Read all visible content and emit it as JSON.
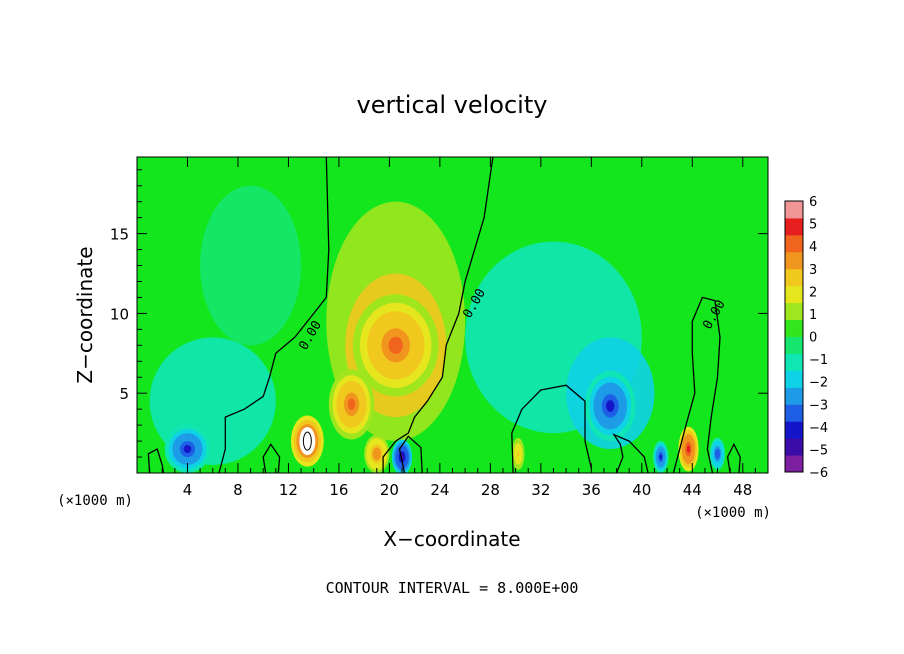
{
  "chart_data": {
    "type": "heatmap",
    "title": "vertical velocity",
    "xlabel": "X−coordinate",
    "ylabel": "Z−coordinate",
    "x_unit_left": "(×1000 m)",
    "x_unit_right": "(×1000 m)",
    "footer": "CONTOUR INTERVAL = 8.000E+00",
    "xlim": [
      0,
      50
    ],
    "ylim": [
      0,
      19.8
    ],
    "x_ticks": [
      4,
      8,
      12,
      16,
      20,
      24,
      28,
      32,
      36,
      40,
      44,
      48
    ],
    "y_ticks": [
      5,
      10,
      15
    ],
    "colorbar": {
      "min": -6,
      "max": 6,
      "tick_values": [
        6,
        5,
        4,
        3,
        2,
        1,
        0,
        -1,
        -2,
        -3,
        -4,
        -5,
        -6
      ],
      "tick_labels": [
        "6",
        "5",
        "4",
        "3",
        "2",
        "1",
        "0",
        "−1",
        "−2",
        "−3",
        "−4",
        "−5",
        "−6"
      ]
    },
    "contour_labels": [
      {
        "text": "0.00",
        "x": 14.0,
        "z": 8.5
      },
      {
        "text": "0.00",
        "x": 27.0,
        "z": 10.5
      },
      {
        "text": "0.00",
        "x": 46.0,
        "z": 9.8
      }
    ],
    "features": [
      {
        "kind": "updraft",
        "x": 13.5,
        "z": 2.0,
        "value": 6.0
      },
      {
        "kind": "updraft",
        "x": 17.0,
        "z": 4.3,
        "value": 4.0
      },
      {
        "kind": "updraft",
        "x": 20.5,
        "z": 8.0,
        "value": 3.8
      },
      {
        "kind": "updraft",
        "x": 19.0,
        "z": 1.2,
        "value": 3.5
      },
      {
        "kind": "updraft",
        "x": 43.7,
        "z": 1.5,
        "value": 5.0
      },
      {
        "kind": "updraft",
        "x": 30.2,
        "z": 1.2,
        "value": 2.5
      },
      {
        "kind": "downdraft",
        "x": 37.5,
        "z": 4.2,
        "value": -3.8
      },
      {
        "kind": "downdraft",
        "x": 4.0,
        "z": 1.5,
        "value": -4.0
      },
      {
        "kind": "downdraft",
        "x": 21.0,
        "z": 1.0,
        "value": -5.0
      },
      {
        "kind": "downdraft",
        "x": 41.5,
        "z": 1.0,
        "value": -4.0
      },
      {
        "kind": "downdraft",
        "x": 46.0,
        "z": 1.2,
        "value": -3.5
      }
    ]
  },
  "colors": {
    "scale": [
      "#7c1fa0",
      "#3c0ca8",
      "#1414c8",
      "#1e5fe6",
      "#1e9be6",
      "#10d2e6",
      "#10e6b4",
      "#14e66e",
      "#32e61e",
      "#a0e61e",
      "#e6e61e",
      "#f0c81e",
      "#f0961e",
      "#f0641e",
      "#e61e1e",
      "#f09696"
    ]
  }
}
